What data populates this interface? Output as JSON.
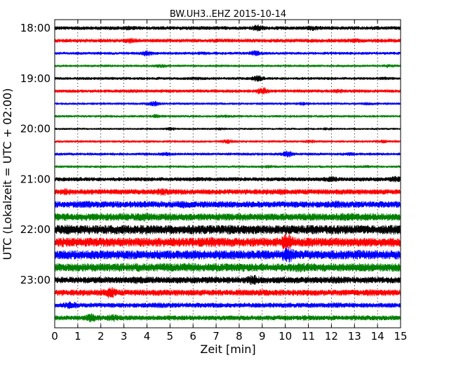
{
  "chart_data": {
    "type": "line",
    "title": "BW.UH3..EHZ 2015-10-14",
    "xlabel": "Zeit  [min]",
    "ylabel": "UTC (Lokalzeit = UTC + 02:00)",
    "xlim": [
      0,
      15
    ],
    "x_ticks": [
      "0",
      "1",
      "2",
      "3",
      "4",
      "5",
      "6",
      "7",
      "8",
      "9",
      "10",
      "11",
      "12",
      "13",
      "14",
      "15"
    ],
    "y_ticks": [
      "18:00",
      "19:00",
      "20:00",
      "21:00",
      "22:00",
      "23:00"
    ],
    "grid": "vertical dotted",
    "trace_colors": [
      "#000000",
      "#ff0000",
      "#0000ff",
      "#008000"
    ],
    "traces": [
      {
        "start": "18:00",
        "amplitude": 0.9,
        "events": [
          [
            8.8,
            2.0
          ],
          [
            11.2,
            1.6
          ],
          [
            3.2,
            1.3
          ]
        ]
      },
      {
        "start": "18:15",
        "amplitude": 0.9,
        "events": [
          [
            3.3,
            1.6
          ],
          [
            13.0,
            1.4
          ],
          [
            7.2,
            1.2
          ]
        ]
      },
      {
        "start": "18:30",
        "amplitude": 0.7,
        "events": [
          [
            4.0,
            2.4
          ],
          [
            8.7,
            2.2
          ],
          [
            6.4,
            1.3
          ]
        ]
      },
      {
        "start": "18:45",
        "amplitude": 0.6,
        "events": [
          [
            4.6,
            1.8
          ],
          [
            14.5,
            1.6
          ],
          [
            2.2,
            1.2
          ]
        ]
      },
      {
        "start": "19:00",
        "amplitude": 0.7,
        "events": [
          [
            8.8,
            2.5
          ],
          [
            6.2,
            1.3
          ],
          [
            14.3,
            1.2
          ]
        ]
      },
      {
        "start": "19:15",
        "amplitude": 0.8,
        "events": [
          [
            9.0,
            2.5
          ],
          [
            12.3,
            1.4
          ],
          [
            3.4,
            1.2
          ]
        ]
      },
      {
        "start": "19:30",
        "amplitude": 0.6,
        "events": [
          [
            4.3,
            2.5
          ],
          [
            10.8,
            1.6
          ],
          [
            13.6,
            1.4
          ]
        ]
      },
      {
        "start": "19:45",
        "amplitude": 0.6,
        "events": [
          [
            4.4,
            1.8
          ],
          [
            7.4,
            1.4
          ],
          [
            2.3,
            1.2
          ]
        ]
      },
      {
        "start": "20:00",
        "amplitude": 0.5,
        "events": [
          [
            5.0,
            2.0
          ],
          [
            7.2,
            1.6
          ],
          [
            11.8,
            1.5
          ]
        ]
      },
      {
        "start": "20:15",
        "amplitude": 0.6,
        "events": [
          [
            7.5,
            2.0
          ],
          [
            11.1,
            1.6
          ],
          [
            14.2,
            1.5
          ]
        ]
      },
      {
        "start": "20:30",
        "amplitude": 0.7,
        "events": [
          [
            10.1,
            2.4
          ],
          [
            4.8,
            1.6
          ],
          [
            12.8,
            1.4
          ]
        ]
      },
      {
        "start": "20:45",
        "amplitude": 0.6,
        "events": [
          [
            9.3,
            1.5
          ],
          [
            3.6,
            1.2
          ],
          [
            13.5,
            1.3
          ]
        ]
      },
      {
        "start": "21:00",
        "amplitude": 1.0,
        "events": [
          [
            12.0,
            1.5
          ],
          [
            14.8,
            1.6
          ],
          [
            6.0,
            1.2
          ]
        ]
      },
      {
        "start": "21:15",
        "amplitude": 1.3,
        "events": [
          [
            4.7,
            1.5
          ],
          [
            9.8,
            1.2
          ],
          [
            0.5,
            1.3
          ]
        ]
      },
      {
        "start": "21:30",
        "amplitude": 1.6,
        "events": [
          [
            5.6,
            1.2
          ],
          [
            12.2,
            1.2
          ],
          [
            1.4,
            1.2
          ]
        ]
      },
      {
        "start": "21:45",
        "amplitude": 1.8,
        "events": [
          [
            12.6,
            1.2
          ],
          [
            3.8,
            1.2
          ],
          [
            0.4,
            1.1
          ]
        ]
      },
      {
        "start": "22:00",
        "amplitude": 2.2,
        "events": [
          [
            0.5,
            1.1
          ],
          [
            7.6,
            1.1
          ],
          [
            14.7,
            1.1
          ]
        ]
      },
      {
        "start": "22:15",
        "amplitude": 2.2,
        "events": [
          [
            10.1,
            2.1
          ],
          [
            0.4,
            1.1
          ],
          [
            6.8,
            1.1
          ]
        ]
      },
      {
        "start": "22:30",
        "amplitude": 2.2,
        "events": [
          [
            10.1,
            1.8
          ],
          [
            13.1,
            1.1
          ],
          [
            6.1,
            1.1
          ]
        ]
      },
      {
        "start": "22:45",
        "amplitude": 2.0,
        "events": [
          [
            10.6,
            1.2
          ],
          [
            5.9,
            1.1
          ],
          [
            13.0,
            1.1
          ]
        ]
      },
      {
        "start": "23:00",
        "amplitude": 1.6,
        "events": [
          [
            8.6,
            1.6
          ],
          [
            3.5,
            1.2
          ],
          [
            12.2,
            1.1
          ]
        ]
      },
      {
        "start": "23:15",
        "amplitude": 1.5,
        "events": [
          [
            2.4,
            2.0
          ],
          [
            13.8,
            1.2
          ],
          [
            9.0,
            1.1
          ]
        ]
      },
      {
        "start": "23:30",
        "amplitude": 1.2,
        "events": [
          [
            0.7,
            1.7
          ],
          [
            4.6,
            1.2
          ],
          [
            12.3,
            1.2
          ]
        ]
      },
      {
        "start": "23:45",
        "amplitude": 1.2,
        "events": [
          [
            1.6,
            2.0
          ],
          [
            2.5,
            1.7
          ],
          [
            10.9,
            1.1
          ]
        ]
      }
    ]
  }
}
